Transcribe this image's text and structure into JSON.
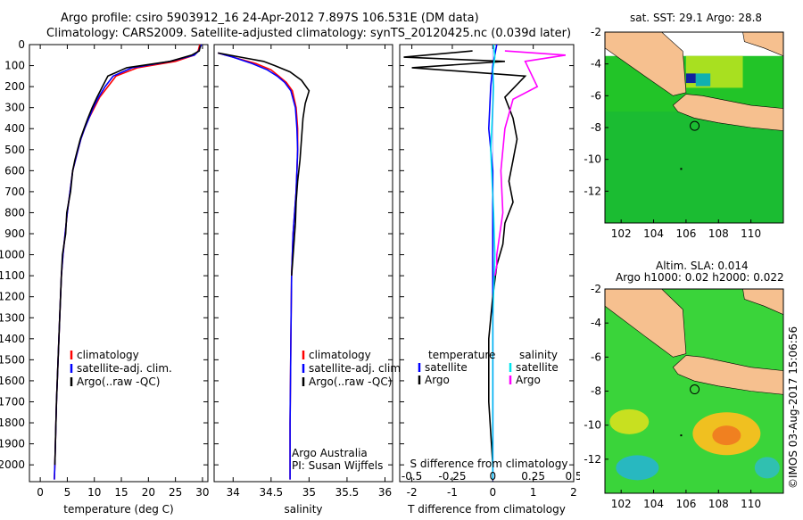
{
  "header": {
    "line1": "Argo profile: csiro 5903912_16 24-Apr-2012 7.897S 106.531E (DM data)",
    "line2": "Climatology: CARS2009. Satellite-adjusted climatology: synTS_20120425.nc (0.039d later)"
  },
  "colors": {
    "climatology": "#ff0000",
    "satellite": "#0000ff",
    "argo": "#000000",
    "sat_salinity": "#00e5ee",
    "argo_salinity": "#ff00ff",
    "land": "#f6c08f"
  },
  "chart_data": [
    {
      "type": "line",
      "name": "temperature-profile",
      "xlabel": "temperature (deg C)",
      "xlim": [
        -2,
        31
      ],
      "xticks": [
        0,
        5,
        10,
        15,
        20,
        25,
        30
      ],
      "ylim": [
        0,
        2080
      ],
      "yticks": [
        0,
        100,
        200,
        300,
        400,
        500,
        600,
        700,
        800,
        900,
        1000,
        1100,
        1200,
        1300,
        1400,
        1500,
        1600,
        1700,
        1800,
        1900,
        2000
      ],
      "legend": [
        "climatology",
        "satellite-adj. clim.",
        "Argo(..raw -QC)"
      ],
      "series": [
        {
          "name": "climatology",
          "color": "#ff0000",
          "x": [
            29.5,
            29.2,
            28.5,
            25,
            18,
            14,
            12.5,
            11,
            10,
            9,
            8.2,
            7.5,
            7,
            6.5,
            6,
            5.5,
            5,
            4.6,
            4.2,
            3.9,
            3.6,
            3.3,
            3,
            2.8,
            2.7,
            2.6
          ],
          "y": [
            0,
            30,
            50,
            80,
            110,
            150,
            200,
            250,
            300,
            350,
            400,
            450,
            500,
            550,
            600,
            700,
            800,
            900,
            1000,
            1100,
            1300,
            1500,
            1700,
            1900,
            2000,
            2070
          ]
        },
        {
          "name": "satellite-adj. clim.",
          "color": "#0000ff",
          "x": [
            29.8,
            29.3,
            28.5,
            24,
            17,
            13.5,
            12,
            10.8,
            9.8,
            9,
            8.2,
            7.5,
            7,
            6.5,
            6,
            5.5,
            5,
            4.6,
            4.2,
            3.9,
            3.6,
            3.3,
            3,
            2.8,
            2.7,
            2.6
          ],
          "y": [
            0,
            30,
            50,
            80,
            110,
            150,
            200,
            250,
            300,
            350,
            400,
            450,
            500,
            550,
            600,
            700,
            800,
            900,
            1000,
            1100,
            1300,
            1500,
            1700,
            1900,
            2000,
            2070
          ]
        },
        {
          "name": "Argo",
          "color": "#000000",
          "x": [
            29.6,
            29.4,
            28,
            24,
            16,
            12.5,
            11.5,
            10.5,
            9.6,
            8.8,
            8.1,
            7.4,
            6.9,
            6.4,
            6,
            5.6,
            4.9,
            4.7,
            4.1,
            3.9,
            3.6,
            3.3,
            3,
            2.8,
            2.7
          ],
          "y": [
            5,
            30,
            50,
            80,
            110,
            150,
            200,
            250,
            300,
            350,
            400,
            450,
            500,
            550,
            600,
            700,
            800,
            900,
            1000,
            1100,
            1300,
            1500,
            1700,
            1900,
            2000
          ]
        }
      ]
    },
    {
      "type": "line",
      "name": "salinity-profile",
      "xlabel": "salinity",
      "xlim": [
        33.75,
        36.1
      ],
      "xticks": [
        34,
        34.5,
        35,
        35.5,
        36
      ],
      "ylim": [
        0,
        2080
      ],
      "legend": [
        "climatology",
        "satellite-adj. clim.",
        "Argo(..raw -QC)"
      ],
      "annotations": [
        "Argo Australia",
        "PI: Susan Wijffels"
      ],
      "series": [
        {
          "name": "climatology",
          "color": "#ff0000",
          "x": [
            33.8,
            34.0,
            34.3,
            34.5,
            34.6,
            34.7,
            34.78,
            34.83,
            34.85,
            34.85,
            34.84,
            34.83,
            34.81,
            34.79,
            34.77,
            34.76,
            34.75,
            34.75
          ],
          "y": [
            40,
            60,
            90,
            120,
            150,
            180,
            220,
            300,
            400,
            500,
            600,
            700,
            800,
            900,
            1100,
            1400,
            1800,
            2070
          ]
        },
        {
          "name": "satellite-adj. clim.",
          "color": "#0000ff",
          "x": [
            33.8,
            34.0,
            34.25,
            34.45,
            34.58,
            34.68,
            34.76,
            34.82,
            34.84,
            34.85,
            34.84,
            34.83,
            34.81,
            34.79,
            34.77,
            34.76,
            34.75,
            34.75
          ],
          "y": [
            40,
            60,
            90,
            120,
            150,
            180,
            220,
            300,
            400,
            500,
            600,
            700,
            800,
            900,
            1100,
            1400,
            1800,
            2070
          ]
        },
        {
          "name": "Argo",
          "color": "#000000",
          "x": [
            33.8,
            34.1,
            34.4,
            34.55,
            34.75,
            34.9,
            35.0,
            34.95,
            34.92,
            34.9,
            34.88,
            34.85,
            34.83,
            34.82,
            34.8,
            34.78,
            34.77
          ],
          "y": [
            40,
            60,
            80,
            100,
            130,
            170,
            220,
            280,
            350,
            450,
            550,
            650,
            750,
            850,
            950,
            1050,
            1100
          ]
        }
      ]
    },
    {
      "type": "line",
      "name": "difference-profile",
      "xlabel": "T difference from climatology",
      "x2label": "S difference from climatology",
      "xlim": [
        -2.3,
        2
      ],
      "xticks": [
        -2,
        -1,
        0,
        1,
        2
      ],
      "x2ticks": [
        -0.5,
        -0.25,
        0,
        0.25,
        0.5
      ],
      "ylim": [
        0,
        2080
      ],
      "legend": [
        "temperature",
        "satellite",
        "Argo",
        "salinity",
        "satellite",
        "Argo"
      ],
      "series": [
        {
          "name": "T satellite",
          "color": "#0000ff",
          "x": [
            0.1,
            0,
            -0.05,
            -0.1,
            0,
            0,
            0,
            0,
            0,
            0,
            0
          ],
          "y": [
            0,
            100,
            200,
            400,
            600,
            800,
            1000,
            1300,
            1600,
            1900,
            2070
          ]
        },
        {
          "name": "T Argo",
          "color": "#000000",
          "x": [
            -0.5,
            -2.2,
            0.3,
            -2.0,
            0.8,
            0.3,
            0.5,
            0.6,
            0.5,
            0.4,
            0.5,
            0.3,
            0.25,
            0.1,
            0,
            -0.1,
            -0.1,
            0
          ],
          "y": [
            30,
            60,
            80,
            110,
            150,
            250,
            350,
            450,
            550,
            650,
            750,
            850,
            950,
            1050,
            1200,
            1400,
            1700,
            2000
          ]
        },
        {
          "name": "S satellite",
          "color": "#00e5ee",
          "x": [
            0.02,
            0.05,
            0,
            0.02,
            0,
            -0.05,
            0.02,
            0.05,
            0,
            0,
            0
          ],
          "y": [
            0,
            60,
            120,
            200,
            300,
            500,
            800,
            1000,
            1300,
            1600,
            2070
          ]
        },
        {
          "name": "S Argo",
          "color": "#ff00ff",
          "x": [
            0.3,
            1.8,
            0.8,
            1.1,
            0.5,
            0.3,
            0.2,
            0.25,
            0.1,
            0.1,
            0.05
          ],
          "y": [
            30,
            50,
            80,
            200,
            260,
            400,
            600,
            800,
            1000,
            1050,
            1100
          ]
        }
      ]
    }
  ],
  "maps": {
    "sst": {
      "title": "sat. SST: 29.1  Argo: 28.8",
      "xticks": [
        102,
        104,
        106,
        108,
        110
      ],
      "yticks": [
        -2,
        -4,
        -6,
        -8,
        -10,
        -12
      ]
    },
    "sla": {
      "title1": "Altim. SLA: 0.014",
      "title2": "Argo h1000: 0.02  h2000: 0.022",
      "xticks": [
        102,
        104,
        106,
        108,
        110
      ],
      "yticks": [
        -2,
        -4,
        -6,
        -8,
        -10,
        -12
      ]
    }
  },
  "credit": "©IMOS 03-Aug-2017 15:06:56"
}
